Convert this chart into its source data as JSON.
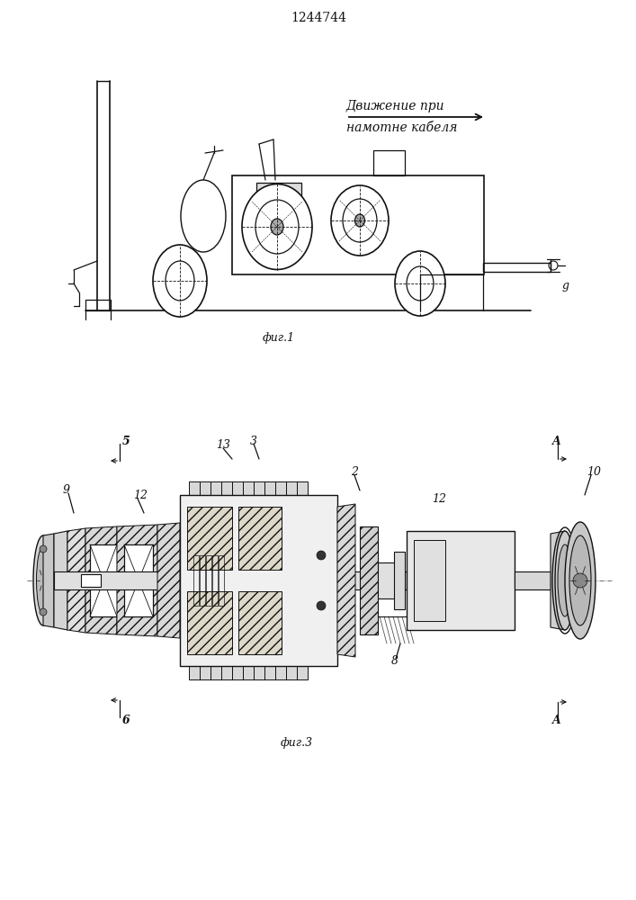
{
  "patent_number": "1244744",
  "fig1_label": "фиг.1",
  "fig3_label": "фиг.3",
  "move_text_line1": "Движение при",
  "move_text_line2": "намотне кабеля",
  "label_g": "g",
  "label_5": "5",
  "label_6": "6",
  "label_9": "9",
  "label_12a": "12",
  "label_12b": "12",
  "label_13": "13",
  "label_3": "3",
  "label_2": "2",
  "label_8": "8",
  "label_10": "10",
  "label_A": "A",
  "label_B_top": "5",
  "label_B_bot": "6",
  "line_color": "#1a1a1a",
  "bg_color": "#ffffff",
  "hatch_lw": 0.4
}
